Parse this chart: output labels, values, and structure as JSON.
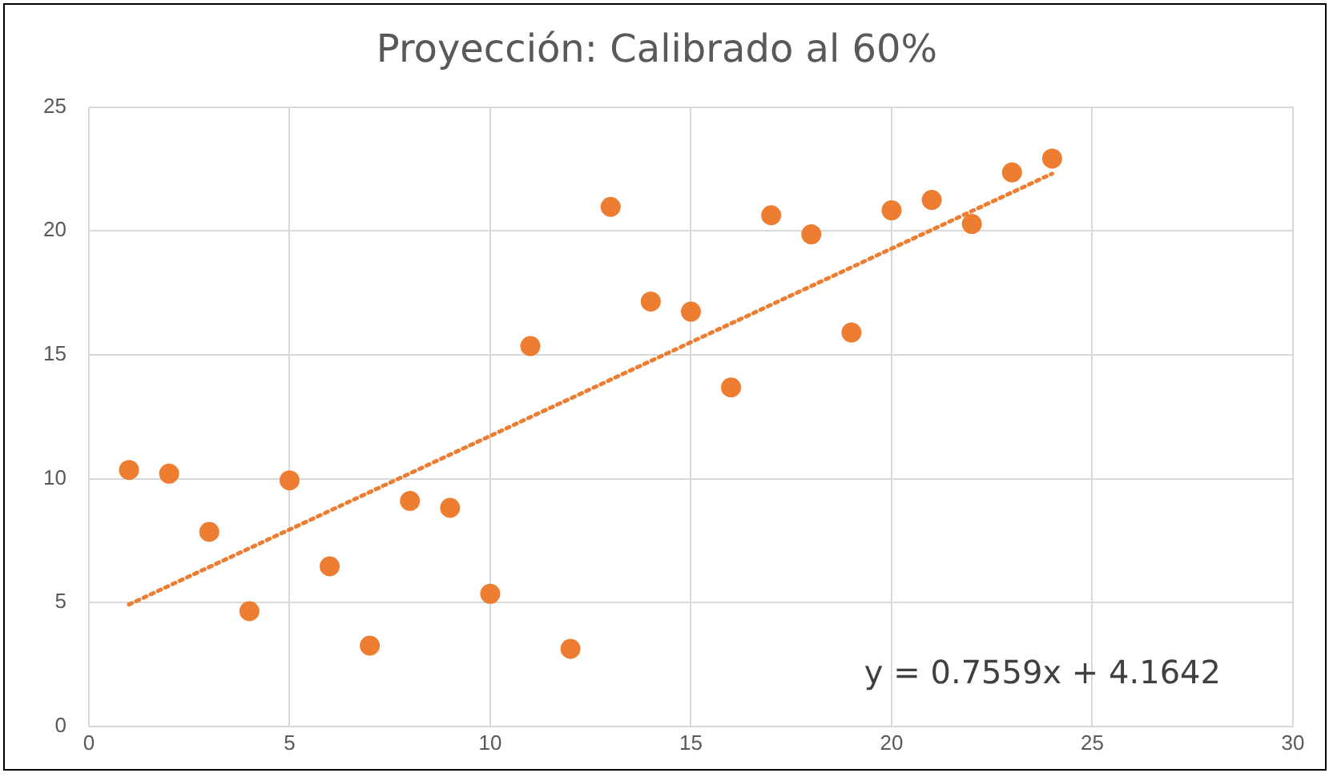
{
  "chart_data": {
    "type": "scatter",
    "title": "Proyección: Calibrado al 60%",
    "x": [
      1,
      2,
      3,
      4,
      5,
      6,
      7,
      8,
      9,
      10,
      11,
      12,
      13,
      14,
      15,
      16,
      17,
      18,
      19,
      20,
      21,
      22,
      23,
      24
    ],
    "series": [
      {
        "type": "scatter",
        "color": "#ed7d31",
        "marker": "circle",
        "values": [
          10.35,
          10.2,
          7.85,
          4.65,
          9.93,
          6.46,
          3.26,
          9.1,
          8.82,
          5.35,
          15.35,
          3.13,
          20.97,
          17.15,
          16.74,
          13.68,
          20.63,
          19.86,
          15.9,
          20.83,
          21.25,
          20.28,
          22.36,
          22.92
        ]
      },
      {
        "type": "line",
        "color": "#ed7d31",
        "line_style": "dotted",
        "marker": "none",
        "x": [
          1,
          24
        ],
        "values": [
          4.92,
          22.31
        ]
      }
    ],
    "xlim": [
      0,
      30
    ],
    "xticks": [
      0,
      5,
      10,
      15,
      20,
      25,
      30
    ],
    "ylim": [
      0,
      25
    ],
    "yticks": [
      0,
      5,
      10,
      15,
      20,
      25
    ],
    "grid": true,
    "legend": false,
    "annotations": [
      "y = 0.7559x + 4.1642"
    ]
  }
}
